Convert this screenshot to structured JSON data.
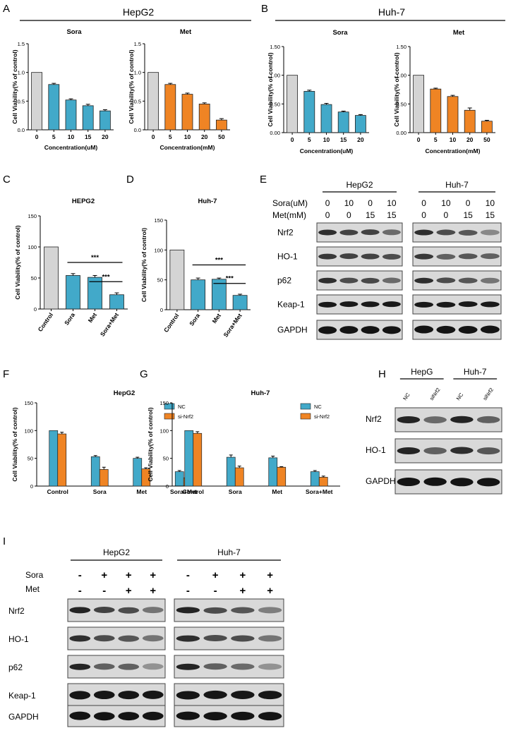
{
  "colors": {
    "control": "#d4d4d4",
    "sora": "#42a9c9",
    "met": "#ef8424",
    "nc": "#42a9c9",
    "si": "#ef8424"
  },
  "panels": {
    "A": {
      "label": "A",
      "cell_line": "HepG2"
    },
    "B": {
      "label": "B",
      "cell_line": "Huh-7"
    },
    "C": {
      "label": "C"
    },
    "D": {
      "label": "D"
    },
    "E": {
      "label": "E"
    },
    "F": {
      "label": "F"
    },
    "G": {
      "label": "G"
    },
    "H": {
      "label": "H"
    },
    "I": {
      "label": "I"
    }
  },
  "chart_data": [
    {
      "id": "A1",
      "type": "bar",
      "title": "Sora",
      "categories": [
        "0",
        "5",
        "10",
        "15",
        "20"
      ],
      "values": [
        1.0,
        0.79,
        0.52,
        0.42,
        0.33
      ],
      "errors": [
        0,
        0.02,
        0.02,
        0.025,
        0.02
      ],
      "xlabel": "Concentration(uM)",
      "ylabel": "Cell Viability(% of control)",
      "ylim": [
        0,
        1.5
      ],
      "yticks": [
        "0.0",
        "0.5",
        "1.0",
        "1.5"
      ]
    },
    {
      "id": "A2",
      "type": "bar",
      "title": "Met",
      "categories": [
        "0",
        "5",
        "10",
        "20",
        "50"
      ],
      "values": [
        1.0,
        0.79,
        0.62,
        0.45,
        0.17
      ],
      "errors": [
        0,
        0.02,
        0.02,
        0.02,
        0.025
      ],
      "xlabel": "Concentration(mM)",
      "ylabel": "Cell Viability(% of control)",
      "ylim": [
        0,
        1.5
      ],
      "yticks": [
        "0.0",
        "0.5",
        "1.0",
        "1.5"
      ]
    },
    {
      "id": "B1",
      "type": "bar",
      "title": "Sora",
      "categories": [
        "0",
        "5",
        "10",
        "15",
        "20"
      ],
      "values": [
        1.0,
        0.72,
        0.49,
        0.36,
        0.3
      ],
      "errors": [
        0,
        0.02,
        0.02,
        0.015,
        0.015
      ],
      "xlabel": "Concentration(uM)",
      "ylabel": "Cell Viability(% of control)",
      "ylim": [
        0,
        1.5
      ],
      "yticks": [
        "0.00",
        "0.50",
        "1.00",
        "1.50"
      ]
    },
    {
      "id": "B2",
      "type": "bar",
      "title": "Met",
      "categories": [
        "0",
        "5",
        "10",
        "20",
        "50"
      ],
      "values": [
        1.0,
        0.76,
        0.63,
        0.39,
        0.2
      ],
      "errors": [
        0,
        0.015,
        0.02,
        0.04,
        0.015
      ],
      "xlabel": "Concentration(mM)",
      "ylabel": "Cell Viability(% of control)",
      "ylim": [
        0,
        1.5
      ],
      "yticks": [
        "0.00",
        "0.50",
        "1.00",
        "1.50"
      ]
    },
    {
      "id": "C",
      "type": "bar",
      "title": "HEPG2",
      "categories": [
        "Control",
        "Sora",
        "Met",
        "Sora+Met"
      ],
      "values": [
        100,
        54,
        51,
        23
      ],
      "errors": [
        0,
        3,
        3,
        3
      ],
      "ylabel": "Cell Viability(% of control)",
      "ylim": [
        0,
        150
      ],
      "yticks": [
        "0",
        "50",
        "100",
        "150"
      ],
      "annotations": [
        "***",
        "***"
      ]
    },
    {
      "id": "D",
      "type": "bar",
      "title": "Huh-7",
      "categories": [
        "Control",
        "Sora",
        "Met",
        "Sora+Met"
      ],
      "values": [
        100,
        50,
        51,
        24
      ],
      "errors": [
        0,
        3,
        2,
        2
      ],
      "ylabel": "Cell Viability(% of control)",
      "ylim": [
        0,
        150
      ],
      "yticks": [
        "0",
        "50",
        "100",
        "150"
      ],
      "annotations": [
        "***",
        "***"
      ]
    },
    {
      "id": "F",
      "type": "bar",
      "title": "HepG2",
      "categories": [
        "Control",
        "Sora",
        "Met",
        "Sora+Met"
      ],
      "series": [
        {
          "name": "NC",
          "values": [
            100,
            53,
            50,
            26
          ],
          "errors": [
            0,
            2,
            2,
            2
          ]
        },
        {
          "name": "si-Nrf2",
          "values": [
            94,
            30,
            31,
            15
          ],
          "errors": [
            3,
            4,
            2,
            4
          ]
        }
      ],
      "ylabel": "Cell Viability(% of control)",
      "ylim": [
        0,
        150
      ],
      "yticks": [
        "0",
        "50",
        "100",
        "150"
      ],
      "legend": "top-right"
    },
    {
      "id": "G",
      "type": "bar",
      "title": "Huh-7",
      "categories": [
        "Control",
        "Sora",
        "Met",
        "Sora+Met"
      ],
      "series": [
        {
          "name": "NC",
          "values": [
            100,
            52,
            51,
            26
          ],
          "errors": [
            0,
            4,
            3,
            2
          ]
        },
        {
          "name": "si-Nrf2",
          "values": [
            95,
            33,
            34,
            16
          ],
          "errors": [
            3,
            3,
            1,
            2
          ]
        }
      ],
      "ylabel": "Cell Viability(% of control)",
      "ylim": [
        0,
        150
      ],
      "yticks": [
        "0",
        "50",
        "100",
        "150"
      ],
      "legend": "top-right"
    }
  ],
  "blot_E": {
    "groups": [
      "HepG2",
      "Huh-7"
    ],
    "sora_label": "Sora(uM)",
    "met_label": "Met(mM)",
    "sora_values": [
      "0",
      "10",
      "0",
      "10",
      "0",
      "10",
      "0",
      "10"
    ],
    "met_values": [
      "0",
      "0",
      "15",
      "15",
      "0",
      "0",
      "15",
      "15"
    ],
    "rows": [
      "Nrf2",
      "HO-1",
      "p62",
      "Keap-1",
      "GAPDH"
    ]
  },
  "blot_H": {
    "groups": [
      "HepG",
      "Huh-7"
    ],
    "lanes": [
      "NC",
      "siNrf2",
      "NC",
      "siNrf2"
    ],
    "rows": [
      "Nrf2",
      "HO-1",
      "GAPDH"
    ]
  },
  "blot_I": {
    "groups": [
      "HepG2",
      "Huh-7"
    ],
    "sora_label": "Sora",
    "met_label": "Met",
    "sora_signs": [
      "-",
      "+",
      "+",
      "+",
      "-",
      "+",
      "+",
      "+"
    ],
    "met_signs": [
      "-",
      "-",
      "+",
      "+",
      "-",
      "-",
      "+",
      "+"
    ],
    "rows": [
      "Nrf2",
      "HO-1",
      "p62",
      "Keap-1",
      "GAPDH"
    ]
  }
}
